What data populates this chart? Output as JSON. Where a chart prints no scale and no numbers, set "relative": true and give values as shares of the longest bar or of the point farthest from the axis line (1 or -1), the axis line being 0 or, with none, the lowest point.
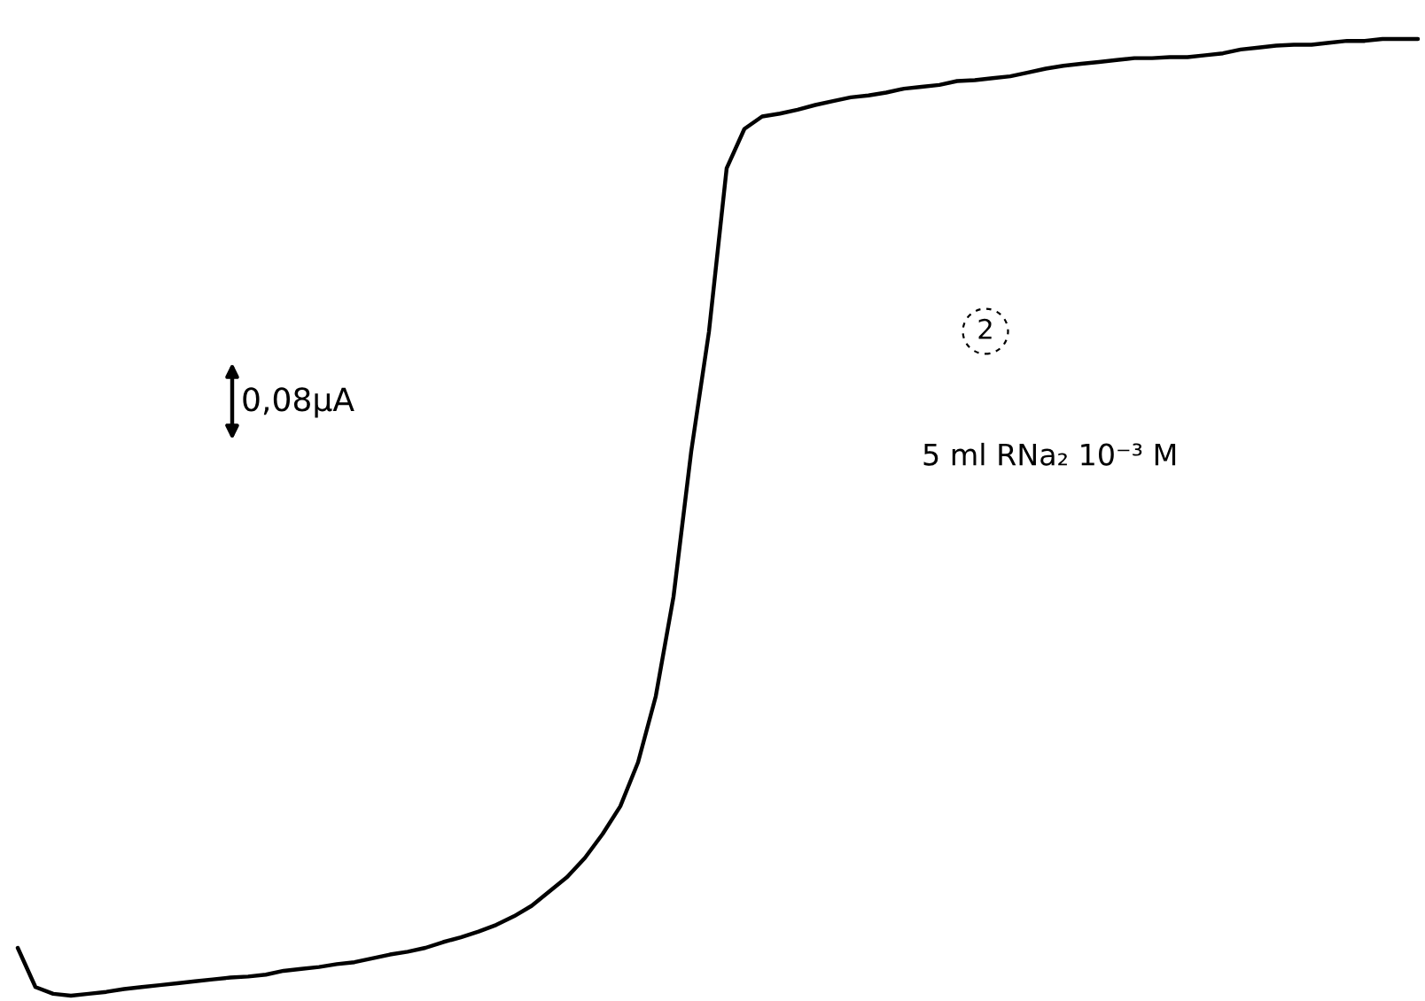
{
  "chart_data": {
    "type": "line",
    "relative": true,
    "categories": [
      null,
      null,
      null,
      null,
      null,
      null,
      null,
      null,
      null,
      null,
      null,
      null,
      null,
      null,
      null,
      null,
      null,
      null,
      null,
      null,
      null,
      null,
      null,
      null,
      null,
      null,
      null,
      null,
      null,
      null,
      null,
      null,
      null,
      null,
      null,
      null,
      null,
      null,
      null,
      null,
      null,
      null,
      null,
      null,
      null,
      null,
      null,
      null,
      null,
      null,
      null,
      null,
      null,
      null,
      null,
      null,
      null,
      null,
      null,
      null,
      null,
      null,
      null,
      null,
      null,
      null,
      null,
      null,
      null,
      null,
      null,
      null,
      null,
      null,
      null,
      null,
      null,
      null,
      null,
      null
    ],
    "series": [
      {
        "color": "#000000",
        "values": [
          0.05,
          0.009,
          0.002,
          0.0,
          0.002,
          0.004,
          0.007,
          0.009,
          0.011,
          0.013,
          0.015,
          0.017,
          0.019,
          0.02,
          0.022,
          0.026,
          0.028,
          0.03,
          0.033,
          0.035,
          0.039,
          0.043,
          0.046,
          0.05,
          0.056,
          0.061,
          0.067,
          0.074,
          0.083,
          0.094,
          0.109,
          0.124,
          0.144,
          0.169,
          0.198,
          0.244,
          0.313,
          0.417,
          0.569,
          0.694,
          0.865,
          0.906,
          0.919,
          0.922,
          0.926,
          0.931,
          0.935,
          0.939,
          0.941,
          0.944,
          0.948,
          0.95,
          0.952,
          0.956,
          0.957,
          0.959,
          0.961,
          0.965,
          0.969,
          0.972,
          0.974,
          0.976,
          0.978,
          0.98,
          0.98,
          0.981,
          0.981,
          0.983,
          0.985,
          0.989,
          0.991,
          0.993,
          0.994,
          0.994,
          0.996,
          0.998,
          0.998,
          1.0,
          1.0,
          1.0
        ]
      }
    ],
    "annotations": [
      "0,08μA",
      "2",
      "5 ml RNa₂ 10⁻³ M"
    ]
  }
}
